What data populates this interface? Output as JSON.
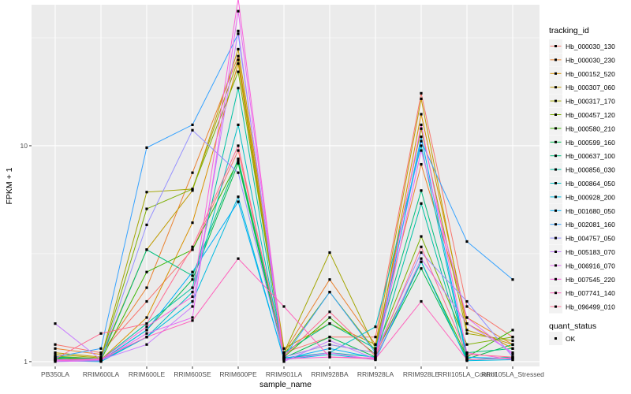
{
  "chart_data": {
    "type": "line",
    "xlabel": "sample_name",
    "ylabel": "FPKM + 1",
    "y_scale": "log10",
    "ylim": [
      0.95,
      45
    ],
    "y_ticks": [
      1,
      10
    ],
    "y_tick_labels": [
      "1",
      "10"
    ],
    "categories": [
      "PB350LA",
      "RRIM600LA",
      "RRIM600LE",
      "RRIM600SE",
      "RRIM600PE",
      "RRIM901LA",
      "RRIM928BA",
      "RRIM928LA",
      "RRIM928LE",
      "RRII105LA_Control",
      "RRII105LA_Stressed"
    ],
    "grid": true,
    "legend_title": "tracking_id",
    "legend_position": "right",
    "series": [
      {
        "name": "Hb_000030_130",
        "color": "#F8766D",
        "values": [
          1.2,
          1.1,
          1.9,
          3.3,
          9.5,
          1.1,
          1.3,
          1.3,
          17.5,
          1.8,
          1.3
        ]
      },
      {
        "name": "Hb_000030_230",
        "color": "#EA8331",
        "values": [
          1.15,
          1.08,
          2.2,
          7.5,
          26,
          1.1,
          2.4,
          1.2,
          8.2,
          1.6,
          1.2
        ]
      },
      {
        "name": "Hb_000152_520",
        "color": "#D89000",
        "values": [
          1.05,
          1.02,
          1.6,
          4.4,
          24,
          1.05,
          1.2,
          1.1,
          14,
          1.5,
          1.15
        ]
      },
      {
        "name": "Hb_000307_060",
        "color": "#C09B00",
        "values": [
          1.1,
          1.05,
          3.3,
          6.2,
          28,
          1.15,
          1.5,
          1.2,
          16.5,
          1.4,
          1.2
        ]
      },
      {
        "name": "Hb_000317_170",
        "color": "#A3A500",
        "values": [
          1.08,
          1.04,
          6.1,
          6.3,
          25,
          1.1,
          3.2,
          1.15,
          12,
          1.35,
          1.25
        ]
      },
      {
        "name": "Hb_000457_120",
        "color": "#7CAE00",
        "values": [
          1.06,
          1.03,
          5.1,
          6.3,
          22,
          1.08,
          2.1,
          1.12,
          3.8,
          1.2,
          1.3
        ]
      },
      {
        "name": "Hb_000580_210",
        "color": "#39B600",
        "values": [
          1.04,
          1.02,
          2.6,
          3.3,
          8.5,
          1.05,
          1.6,
          1.08,
          2.9,
          1.05,
          1.4
        ]
      },
      {
        "name": "Hb_000599_160",
        "color": "#00BB4E",
        "values": [
          1.03,
          1.01,
          1.4,
          2.4,
          8.3,
          1.04,
          1.3,
          1.05,
          2.7,
          1.03,
          1.2
        ]
      },
      {
        "name": "Hb_000637_100",
        "color": "#00BF7D",
        "values": [
          1.05,
          1.03,
          3.3,
          2.5,
          8.7,
          1.1,
          1.5,
          1.15,
          6.2,
          1.1,
          1.15
        ]
      },
      {
        "name": "Hb_000856_030",
        "color": "#00C1A3",
        "values": [
          1.02,
          1.02,
          1.5,
          2.2,
          18.5,
          1.03,
          1.1,
          1.05,
          5.4,
          1.02,
          1.05
        ]
      },
      {
        "name": "Hb_000864_050",
        "color": "#00BFC4",
        "values": [
          1.03,
          1.01,
          1.3,
          2.1,
          12.5,
          1.04,
          1.1,
          1.45,
          10,
          1.02,
          1.04
        ]
      },
      {
        "name": "Hb_000928_200",
        "color": "#00BAE0",
        "values": [
          1.01,
          1.0,
          1.3,
          1.9,
          5.8,
          1.02,
          1.08,
          1.02,
          2.9,
          1.01,
          1.02
        ]
      },
      {
        "name": "Hb_001680_050",
        "color": "#00B0F6",
        "values": [
          1.02,
          1.01,
          1.4,
          2.6,
          5.5,
          1.03,
          1.15,
          1.04,
          11,
          1.05,
          1.03
        ]
      },
      {
        "name": "Hb_002081_160",
        "color": "#35A2FF",
        "values": [
          1.05,
          1.15,
          9.8,
          12.5,
          33,
          1.05,
          2.1,
          1.1,
          10.5,
          3.6,
          2.4
        ]
      },
      {
        "name": "Hb_004757_050",
        "color": "#9590FF",
        "values": [
          1.02,
          1.02,
          4.3,
          11.8,
          7.5,
          1.05,
          1.2,
          1.1,
          3.2,
          1.9,
          1.05
        ]
      },
      {
        "name": "Hb_005183_070",
        "color": "#C77CFF",
        "values": [
          1.5,
          1.02,
          1.2,
          1.8,
          34,
          1.0,
          1.25,
          1.03,
          3.0,
          1.5,
          1.1
        ]
      },
      {
        "name": "Hb_006916_070",
        "color": "#E76BF3",
        "values": [
          1.0,
          1.01,
          1.35,
          1.6,
          42,
          1.02,
          1.1,
          1.02,
          9.5,
          1.6,
          1.08
        ]
      },
      {
        "name": "Hb_007545_220",
        "color": "#FA62DB",
        "values": [
          1.01,
          1.02,
          1.45,
          2.0,
          48,
          1.03,
          1.05,
          1.04,
          12.5,
          1.1,
          1.02
        ]
      },
      {
        "name": "Hb_007741_140",
        "color": "#FF62BC",
        "values": [
          1.02,
          1.03,
          1.3,
          1.55,
          3.0,
          1.8,
          1.05,
          1.03,
          1.9,
          1.02,
          1.04
        ]
      },
      {
        "name": "Hb_096499_010",
        "color": "#FF6C91",
        "values": [
          1.03,
          1.35,
          1.5,
          3.4,
          10,
          1.06,
          1.7,
          1.06,
          3.4,
          1.08,
          1.05
        ]
      }
    ],
    "shape_legend": {
      "title": "quant_status",
      "items": [
        {
          "label": "OK",
          "shape": "square"
        }
      ]
    },
    "colors": {
      "panel": "#EBEBEB",
      "grid_major": "#FFFFFF",
      "point": "#000000"
    }
  }
}
